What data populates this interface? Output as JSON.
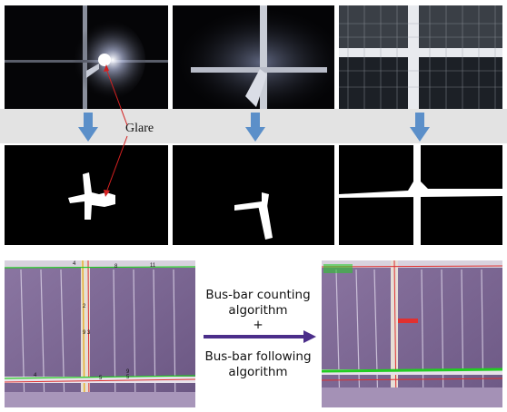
{
  "annotation": {
    "glare_label": "Glare"
  },
  "caption": {
    "line1": "Bus-bar counting",
    "line2": "algorithm",
    "line3": "+",
    "line4": "Bus-bar following",
    "line5": "algorithm"
  },
  "colors": {
    "arrow_down": "#5b8fc9",
    "arrow_right": "#4b2e8a",
    "glare_pointer": "#d42020",
    "panel_purple": "#7a6590",
    "busbar_green": "#22cc22",
    "busbar_red": "#e03030"
  },
  "overlay_labels": {
    "left_numbers": [
      "4",
      "8",
      "11",
      "2",
      "9",
      "3",
      "4",
      "5",
      "9",
      "5"
    ]
  }
}
